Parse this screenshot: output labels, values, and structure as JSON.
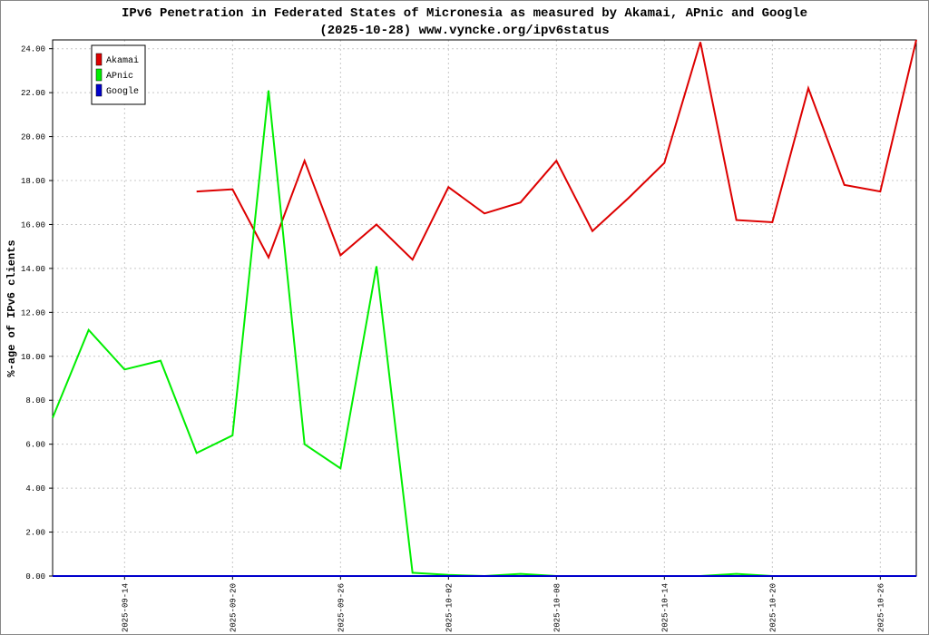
{
  "chart_data": {
    "type": "line",
    "title": "IPv6 Penetration in Federated States of Micronesia as measured by Akamai, APnic and Google",
    "subtitle": "(2025-10-28) www.vyncke.org/ipv6status",
    "y_label": "%-age of IPv6 clients",
    "x": [
      "2025-09-10",
      "2025-09-12",
      "2025-09-14",
      "2025-09-16",
      "2025-09-18",
      "2025-09-20",
      "2025-09-22",
      "2025-09-24",
      "2025-09-26",
      "2025-09-28",
      "2025-09-30",
      "2025-10-02",
      "2025-10-04",
      "2025-10-06",
      "2025-10-08",
      "2025-10-10",
      "2025-10-12",
      "2025-10-14",
      "2025-10-16",
      "2025-10-18",
      "2025-10-20",
      "2025-10-22",
      "2025-10-24",
      "2025-10-26",
      "2025-10-28"
    ],
    "xlim": [
      "2025-09-10",
      "2025-10-28"
    ],
    "xticks": [
      "2025-09-14",
      "2025-09-20",
      "2025-09-26",
      "2025-10-02",
      "2025-10-08",
      "2025-10-14",
      "2025-10-20",
      "2025-10-26"
    ],
    "ylim": [
      0,
      24.4
    ],
    "yticks": [
      {
        "value": 0,
        "label": "0.00"
      },
      {
        "value": 2,
        "label": "2.00"
      },
      {
        "value": 4,
        "label": "4.00"
      },
      {
        "value": 6,
        "label": "6.00"
      },
      {
        "value": 8,
        "label": "8.00"
      },
      {
        "value": 10,
        "label": "10.00"
      },
      {
        "value": 12,
        "label": "12.00"
      },
      {
        "value": 14,
        "label": "14.00"
      },
      {
        "value": 16,
        "label": "16.00"
      },
      {
        "value": 18,
        "label": "18.00"
      },
      {
        "value": 20,
        "label": "20.00"
      },
      {
        "value": 22,
        "label": "22.00"
      },
      {
        "value": 24,
        "label": "24.00"
      }
    ],
    "grid": true,
    "legend": "top-left",
    "series": [
      {
        "name": "Akamai",
        "color": "#dd0000",
        "values": [
          null,
          null,
          null,
          null,
          17.5,
          17.6,
          14.5,
          18.9,
          14.6,
          16.0,
          14.4,
          17.7,
          16.5,
          17.0,
          18.9,
          15.7,
          17.2,
          18.8,
          24.3,
          16.2,
          16.1,
          22.2,
          17.8,
          17.5,
          24.4
        ]
      },
      {
        "name": "APnic",
        "color": "#00ee00",
        "values": [
          7.2,
          11.2,
          9.4,
          9.8,
          5.6,
          6.4,
          22.1,
          6.0,
          4.9,
          14.1,
          0.15,
          0.05,
          0,
          0.1,
          0,
          0,
          0,
          0,
          0,
          0.1,
          0,
          0,
          0,
          0,
          null
        ]
      },
      {
        "name": "Google",
        "color": "#0000cc",
        "values": [
          0,
          0,
          0,
          0,
          0,
          0,
          0,
          0,
          0,
          0,
          0,
          0,
          0,
          0,
          0,
          0,
          0,
          0,
          0,
          0,
          0,
          0,
          0,
          0,
          0
        ]
      }
    ]
  }
}
